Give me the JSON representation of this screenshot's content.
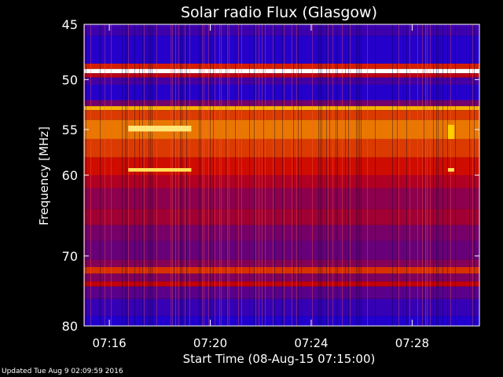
{
  "chart_data": {
    "type": "heatmap",
    "title": "Solar radio Flux (Glasgow)",
    "xlabel": "Start Time (08-Aug-15 07:15:00)",
    "ylabel": "Frequency [MHz]",
    "x_range": [
      "07:15:00",
      "07:30:40"
    ],
    "y_range": [
      45,
      80
    ],
    "y_scale": "log",
    "x_ticks": [
      "07:16",
      "07:20",
      "07:24",
      "07:28"
    ],
    "y_ticks": [
      45,
      50,
      55,
      60,
      70,
      80
    ],
    "colormap": "blue-red-yellow-white",
    "colors": {
      "low": "#1a00d8",
      "mid": "#cc0000",
      "high": "#ffd000",
      "peak": "#ffffff"
    },
    "bands": [
      {
        "from": 45,
        "to": 46,
        "level": 0.1
      },
      {
        "from": 46,
        "to": 48.5,
        "level": 0.03
      },
      {
        "from": 48.5,
        "to": 49.0,
        "level": 0.55
      },
      {
        "from": 49.0,
        "to": 49.4,
        "level": 1.0
      },
      {
        "from": 49.4,
        "to": 49.8,
        "level": 0.45
      },
      {
        "from": 49.8,
        "to": 50.5,
        "level": 0.12
      },
      {
        "from": 50.5,
        "to": 52.0,
        "level": 0.03
      },
      {
        "from": 52.0,
        "to": 52.6,
        "level": 0.25
      },
      {
        "from": 52.6,
        "to": 53.0,
        "level": 0.8
      },
      {
        "from": 53.0,
        "to": 54.0,
        "level": 0.6
      },
      {
        "from": 54.0,
        "to": 56.0,
        "level": 0.7
      },
      {
        "from": 56.0,
        "to": 58.0,
        "level": 0.6
      },
      {
        "from": 58.0,
        "to": 60.0,
        "level": 0.52
      },
      {
        "from": 60.0,
        "to": 61.5,
        "level": 0.42
      },
      {
        "from": 61.5,
        "to": 64.0,
        "level": 0.32
      },
      {
        "from": 64.0,
        "to": 66.0,
        "level": 0.38
      },
      {
        "from": 66.0,
        "to": 68.0,
        "level": 0.26
      },
      {
        "from": 68.0,
        "to": 70.5,
        "level": 0.22
      },
      {
        "from": 70.5,
        "to": 71.5,
        "level": 0.3
      },
      {
        "from": 71.5,
        "to": 72.4,
        "level": 0.58
      },
      {
        "from": 72.4,
        "to": 73.5,
        "level": 0.28
      },
      {
        "from": 73.5,
        "to": 74.2,
        "level": 0.48
      },
      {
        "from": 74.2,
        "to": 76.0,
        "level": 0.18
      },
      {
        "from": 76.0,
        "to": 78.5,
        "level": 0.08
      },
      {
        "from": 78.5,
        "to": 80.0,
        "level": 0.02
      }
    ],
    "features": [
      {
        "t_start": "07:16:45",
        "t_end": "07:19:15",
        "f_from": 54.6,
        "f_to": 55.2,
        "level": 0.92
      },
      {
        "t_start": "07:16:45",
        "t_end": "07:19:15",
        "f_from": 59.2,
        "f_to": 59.6,
        "level": 0.9
      },
      {
        "t_start": "07:29:25",
        "t_end": "07:29:40",
        "f_from": 59.2,
        "f_to": 59.6,
        "level": 0.9
      },
      {
        "t_start": "07:29:25",
        "t_end": "07:29:40",
        "f_from": 54.5,
        "f_to": 56.0,
        "level": 0.85
      }
    ]
  },
  "footer": {
    "updated": "Updated Tue Aug  9 02:09:59 2016"
  }
}
